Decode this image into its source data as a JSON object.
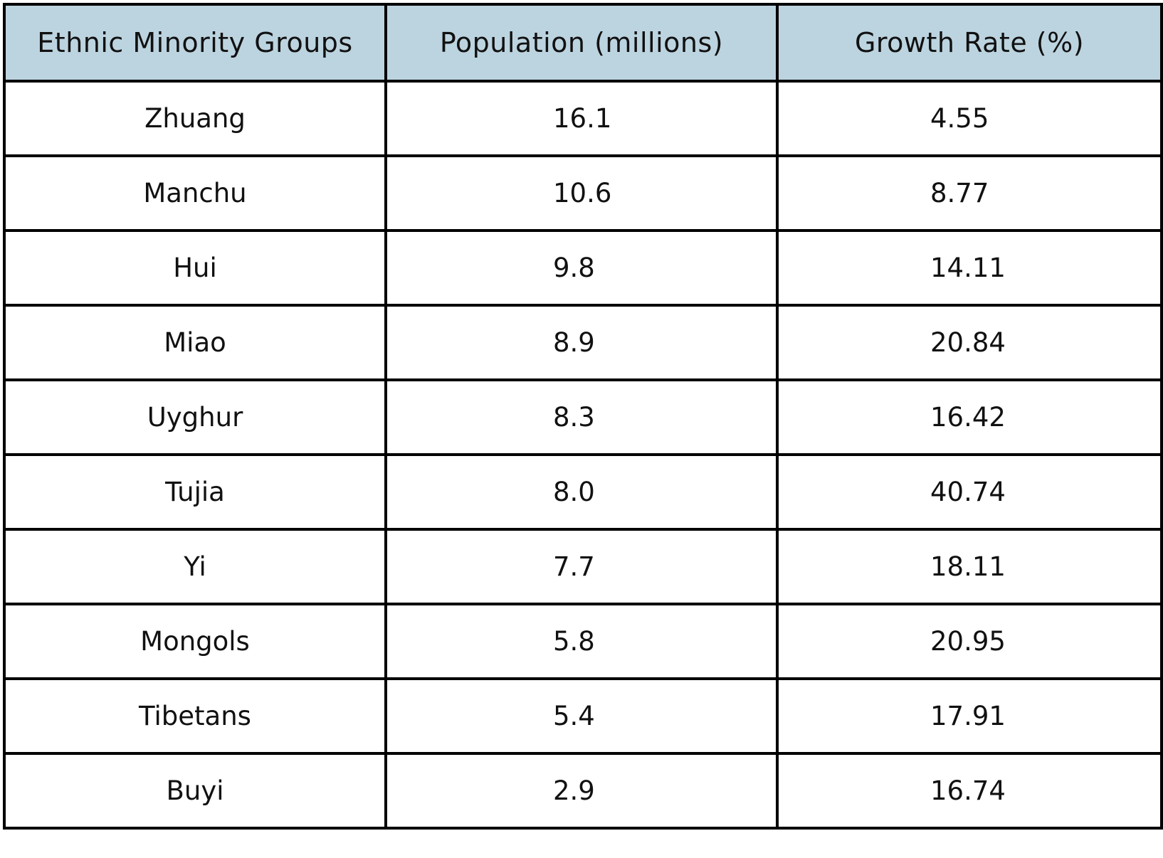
{
  "colors": {
    "header_background": "#bcd4e0",
    "border": "#000000",
    "text": "#111111"
  },
  "chart_data": {
    "type": "table",
    "columns": [
      "Ethnic Minority Groups",
      "Population (millions)",
      "Growth Rate (%)"
    ],
    "rows": [
      [
        "Zhuang",
        "16.1",
        "4.55"
      ],
      [
        "Manchu",
        "10.6",
        "8.77"
      ],
      [
        "Hui",
        "9.8",
        "14.11"
      ],
      [
        "Miao",
        "8.9",
        "20.84"
      ],
      [
        "Uyghur",
        "8.3",
        "16.42"
      ],
      [
        "Tujia",
        "8.0",
        "40.74"
      ],
      [
        "Yi",
        "7.7",
        "18.11"
      ],
      [
        "Mongols",
        "5.8",
        "20.95"
      ],
      [
        "Tibetans",
        "5.4",
        "17.91"
      ],
      [
        "Buyi",
        "2.9",
        "16.74"
      ]
    ]
  }
}
